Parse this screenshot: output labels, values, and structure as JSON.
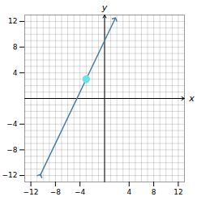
{
  "chart_data": {
    "type": "line",
    "xlabel": "x",
    "ylabel": "y",
    "xlim": [
      -13,
      13
    ],
    "ylim": [
      -13,
      13
    ],
    "xticks": [
      -12,
      -8,
      -4,
      4,
      8,
      12
    ],
    "yticks": [
      -12,
      -8,
      -4,
      4,
      8,
      12
    ],
    "minor_xticks": [
      -12,
      -11,
      -10,
      -9,
      -8,
      -7,
      -6,
      -5,
      -4,
      -3,
      -2,
      -1,
      0,
      1,
      2,
      3,
      4,
      5,
      6,
      7,
      8,
      9,
      10,
      11,
      12
    ],
    "minor_yticks": [
      -12,
      -11,
      -10,
      -9,
      -8,
      -7,
      -6,
      -5,
      -4,
      -3,
      -2,
      -1,
      0,
      1,
      2,
      3,
      4,
      5,
      6,
      7,
      8,
      9,
      10,
      11,
      12
    ],
    "grid": true,
    "series": [
      {
        "type": "line",
        "x": [
          -10.5,
          1.7
        ],
        "values": [
          -12,
          12.4
        ],
        "color": "#4a7fa5",
        "marker": "arrow"
      },
      {
        "type": "scatter",
        "x": [
          -3
        ],
        "values": [
          3
        ],
        "color": "#66e5e5",
        "marker": "o"
      }
    ]
  }
}
